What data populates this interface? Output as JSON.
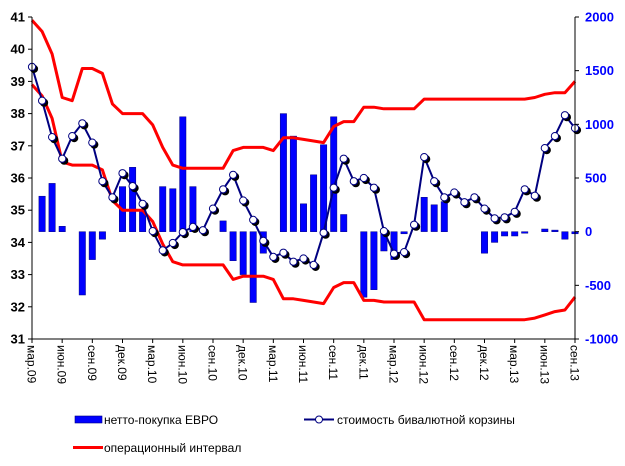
{
  "chart_data": {
    "type": "bar+line",
    "title": "",
    "x": [
      "мар.09",
      "апр.09",
      "май.09",
      "июн.09",
      "июл.09",
      "авг.09",
      "сен.09",
      "окт.09",
      "ноя.09",
      "дек.09",
      "янв.10",
      "фев.10",
      "мар.10",
      "апр.10",
      "май.10",
      "июн.10",
      "июл.10",
      "авг.10",
      "сен.10",
      "окт.10",
      "ноя.10",
      "дек.10",
      "янв.11",
      "фев.11",
      "мар.11",
      "апр.11",
      "май.11",
      "июн.11",
      "июл.11",
      "авг.11",
      "сен.11",
      "окт.11",
      "ноя.11",
      "дек.11",
      "янв.12",
      "фев.12",
      "мар.12",
      "апр.12",
      "май.12",
      "июн.12",
      "июл.12",
      "авг.12",
      "сен.12",
      "окт.12",
      "ноя.12",
      "дек.12",
      "янв.13",
      "фев.13",
      "мар.13",
      "апр.13",
      "май.13",
      "июн.13",
      "июл.13",
      "авг.13",
      "сен.13"
    ],
    "x_tick_labels": [
      "мар.09",
      "июн.09",
      "сен.09",
      "дек.09",
      "мар.10",
      "июн.10",
      "сен.10",
      "дек.10",
      "мар.11",
      "июн.11",
      "сен.11",
      "дек.11",
      "мар.12",
      "июн.12",
      "сен.12",
      "дек.12",
      "мар.13",
      "июн.13",
      "сен.13"
    ],
    "y_left": {
      "range": [
        31,
        41
      ],
      "ticks": [
        "31",
        "32",
        "33",
        "34",
        "35",
        "36",
        "37",
        "38",
        "39",
        "40",
        "41"
      ]
    },
    "y_right": {
      "range": [
        -1000,
        2000
      ],
      "ticks": [
        "-1000",
        "-500",
        "0",
        "500",
        "1000",
        "1500",
        "2000"
      ]
    },
    "grid": false,
    "legend_position": "bottom",
    "series": [
      {
        "name": "нетто-покупка ЕВРО",
        "type": "bar",
        "axis": "right",
        "color": "#0000ff",
        "values": [
          0,
          330,
          450,
          50,
          0,
          -590,
          -260,
          -70,
          0,
          420,
          600,
          200,
          0,
          420,
          400,
          1070,
          420,
          0,
          0,
          100,
          -270,
          -400,
          -660,
          -200,
          0,
          1100,
          890,
          260,
          530,
          810,
          1070,
          160,
          0,
          -610,
          -540,
          -180,
          -260,
          -20,
          0,
          320,
          250,
          280,
          0,
          0,
          0,
          -200,
          -100,
          -40,
          -40,
          -10,
          0,
          25,
          15,
          -70,
          -20
        ]
      },
      {
        "name": "стоимость бивалютной корзины",
        "type": "line",
        "axis": "left",
        "color": "#000080",
        "marker": "circle-open",
        "values": [
          39.45,
          38.4,
          37.27,
          36.6,
          37.3,
          37.7,
          37.1,
          35.9,
          35.4,
          36.15,
          35.75,
          35.2,
          34.35,
          33.75,
          33.98,
          34.32,
          34.48,
          34.38,
          35.05,
          35.65,
          36.1,
          35.3,
          34.7,
          34.05,
          33.55,
          33.68,
          33.4,
          33.5,
          33.3,
          34.3,
          35.7,
          36.6,
          35.9,
          36.0,
          35.7,
          34.35,
          33.65,
          33.7,
          34.55,
          36.65,
          35.9,
          35.4,
          35.55,
          35.25,
          35.4,
          35.05,
          34.75,
          34.78,
          34.95,
          35.65,
          35.45,
          36.93,
          37.3,
          37.95,
          37.55
        ]
      },
      {
        "name": "операционный интервал",
        "type": "line",
        "axis": "left",
        "color": "#ff0000",
        "upper": [
          40.9,
          40.55,
          39.85,
          38.5,
          38.4,
          39.4,
          39.4,
          39.25,
          38.3,
          38.0,
          38.0,
          38.0,
          37.65,
          36.95,
          36.4,
          36.3,
          36.3,
          36.3,
          36.3,
          36.3,
          36.85,
          36.95,
          36.95,
          36.95,
          36.85,
          37.25,
          37.25,
          37.2,
          37.15,
          37.1,
          37.6,
          37.75,
          37.75,
          38.2,
          38.2,
          38.15,
          38.15,
          38.15,
          38.15,
          38.45,
          38.45,
          38.45,
          38.45,
          38.45,
          38.45,
          38.45,
          38.45,
          38.45,
          38.45,
          38.45,
          38.5,
          38.6,
          38.65,
          38.65,
          39.0
        ],
        "lower": [
          38.9,
          38.55,
          37.85,
          36.5,
          36.4,
          36.4,
          36.4,
          36.25,
          35.3,
          35.0,
          35.0,
          35.0,
          34.65,
          33.95,
          33.4,
          33.3,
          33.3,
          33.3,
          33.3,
          33.3,
          32.85,
          32.95,
          32.95,
          32.95,
          32.85,
          32.25,
          32.25,
          32.2,
          32.15,
          32.1,
          32.6,
          32.75,
          32.75,
          32.2,
          32.2,
          32.15,
          32.15,
          32.15,
          32.15,
          31.6,
          31.6,
          31.6,
          31.6,
          31.6,
          31.6,
          31.6,
          31.6,
          31.6,
          31.6,
          31.6,
          31.65,
          31.75,
          31.85,
          31.9,
          32.3
        ]
      }
    ],
    "legend": [
      {
        "label": "нетто-покупка ЕВРО",
        "marker": "bar"
      },
      {
        "label": "стоимость бивалютной корзины",
        "marker": "line-circle"
      },
      {
        "label": "операционный интервал",
        "marker": "line"
      }
    ]
  }
}
